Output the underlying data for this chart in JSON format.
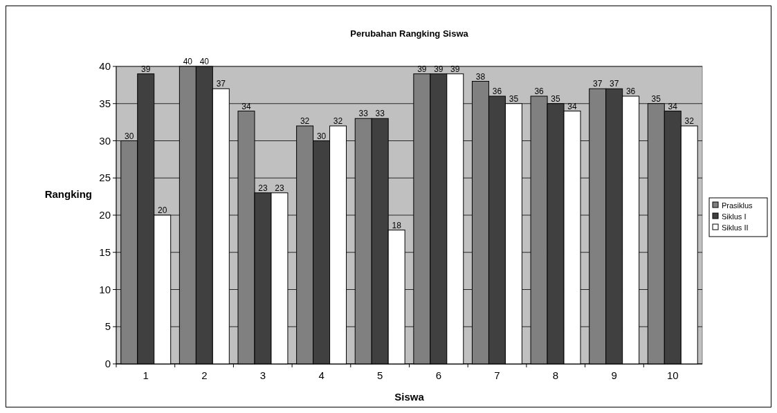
{
  "chart_data": {
    "type": "bar",
    "title": "Perubahan Rangking Siswa",
    "xlabel": "Siswa",
    "ylabel": "Rangking",
    "categories": [
      "1",
      "2",
      "3",
      "4",
      "5",
      "6",
      "7",
      "8",
      "9",
      "10"
    ],
    "series": [
      {
        "name": "Prasiklus",
        "color": "#808080",
        "values": [
          30,
          40,
          34,
          32,
          33,
          39,
          38,
          36,
          37,
          35
        ]
      },
      {
        "name": "Siklus I",
        "color": "#404040",
        "values": [
          39,
          40,
          23,
          30,
          33,
          39,
          36,
          35,
          37,
          34
        ]
      },
      {
        "name": "Siklus II",
        "color": "#ffffff",
        "values": [
          20,
          37,
          23,
          32,
          18,
          39,
          35,
          34,
          36,
          32
        ]
      }
    ],
    "ylim": [
      0,
      40
    ],
    "yticks": [
      0,
      5,
      10,
      15,
      20,
      25,
      30,
      35,
      40
    ],
    "grid": "y",
    "legend": "right",
    "data_labels": true
  }
}
